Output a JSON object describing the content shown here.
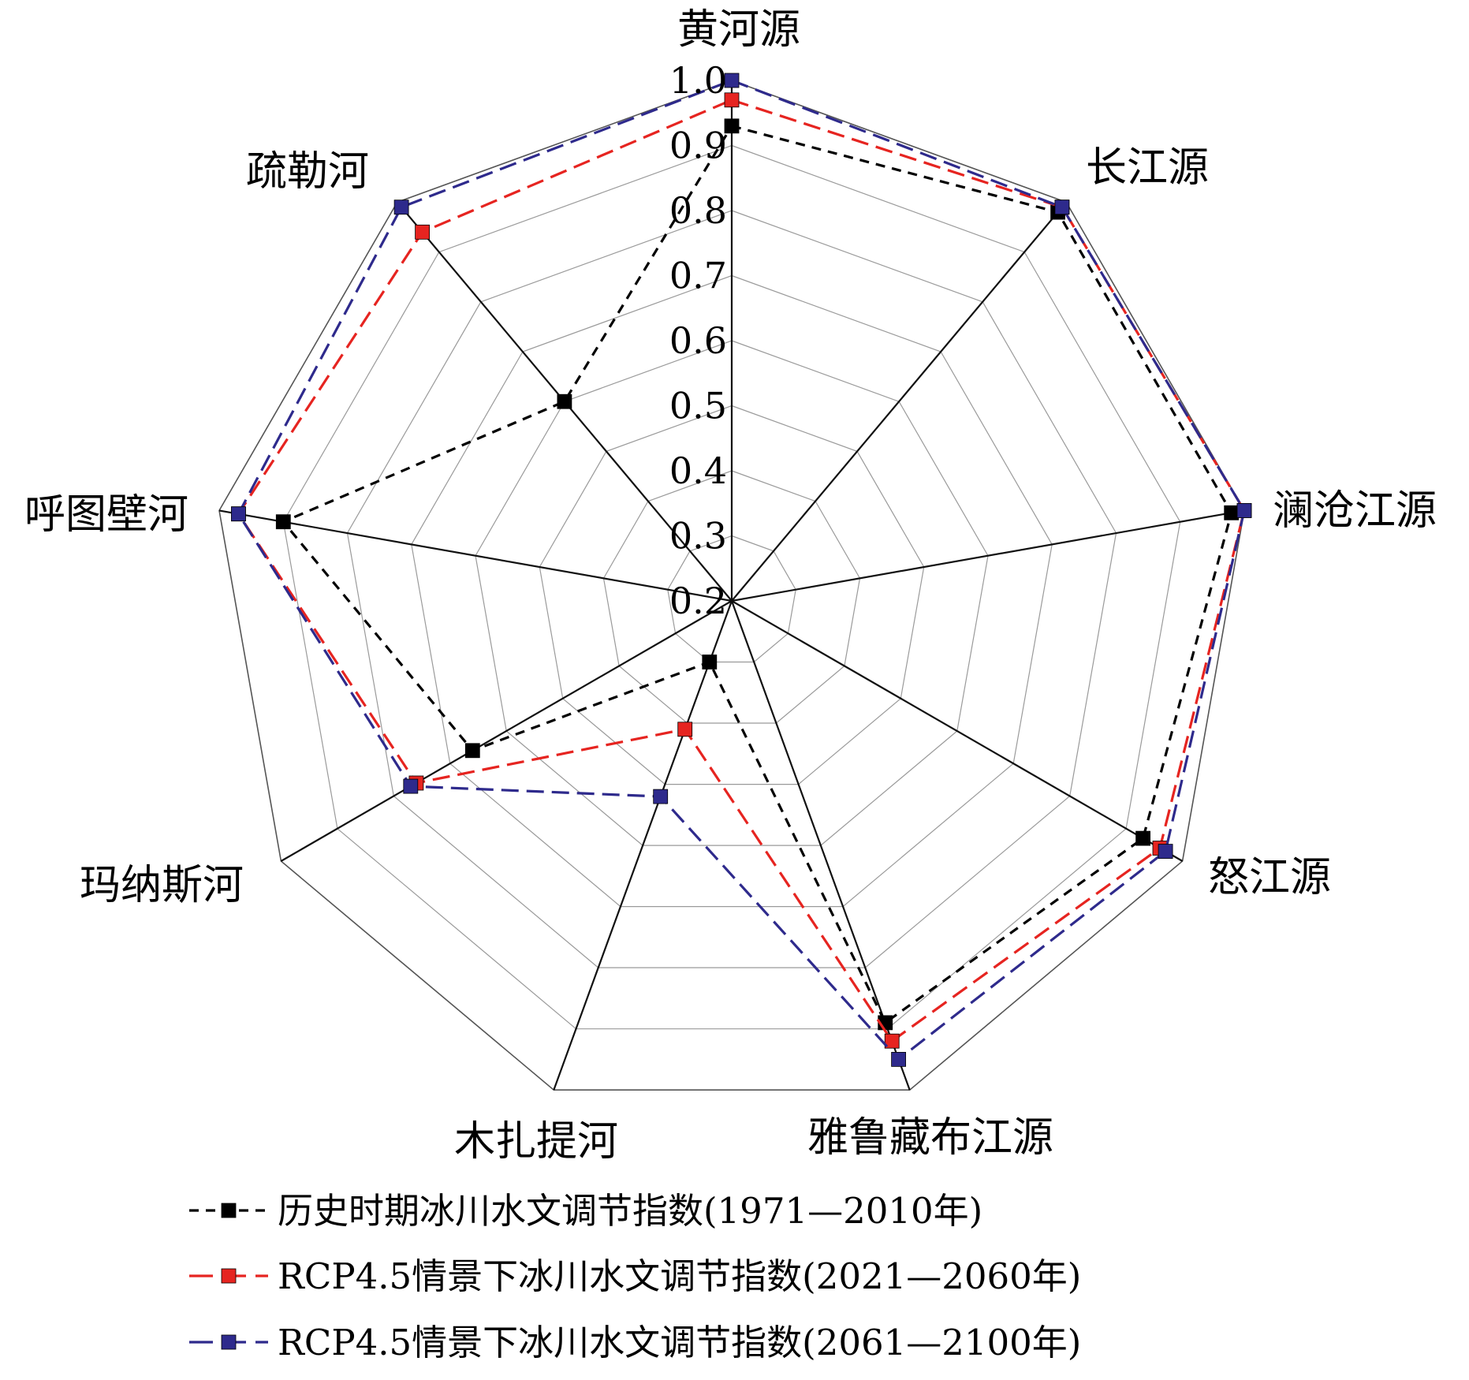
{
  "chart_data": {
    "type": "radar",
    "categories": [
      "黄河源",
      "长江源",
      "澜沧江源",
      "怒江源",
      "雅鲁藏布江源",
      "木扎提河",
      "玛纳斯河",
      "呼图壁河",
      "疏勒河"
    ],
    "rmin": 0.2,
    "rmax": 1.0,
    "ticks": [
      "1.0",
      "0.9",
      "0.8",
      "0.7",
      "0.6",
      "0.5",
      "0.4",
      "0.3",
      "0.2"
    ],
    "series": [
      {
        "name": "历史时期冰川水文调节指数(1971—2010年)",
        "color": "#000000",
        "dash": "12 9",
        "values": [
          0.93,
          0.98,
          0.98,
          0.93,
          0.89,
          0.3,
          0.66,
          0.9,
          0.6
        ]
      },
      {
        "name": "RCP4.5情景下冰川水文调节指数(2021—2060年)",
        "color": "#e62420",
        "dash": "22 10",
        "values": [
          0.97,
          0.99,
          1.0,
          0.96,
          0.92,
          0.41,
          0.76,
          0.97,
          0.94
        ]
      },
      {
        "name": "RCP4.5情景下冰川水文调节指数(2061—2100年)",
        "color": "#2e2a8c",
        "dash": "22 10",
        "values": [
          1.0,
          0.99,
          1.0,
          0.97,
          0.95,
          0.52,
          0.77,
          0.97,
          0.99
        ]
      }
    ]
  }
}
